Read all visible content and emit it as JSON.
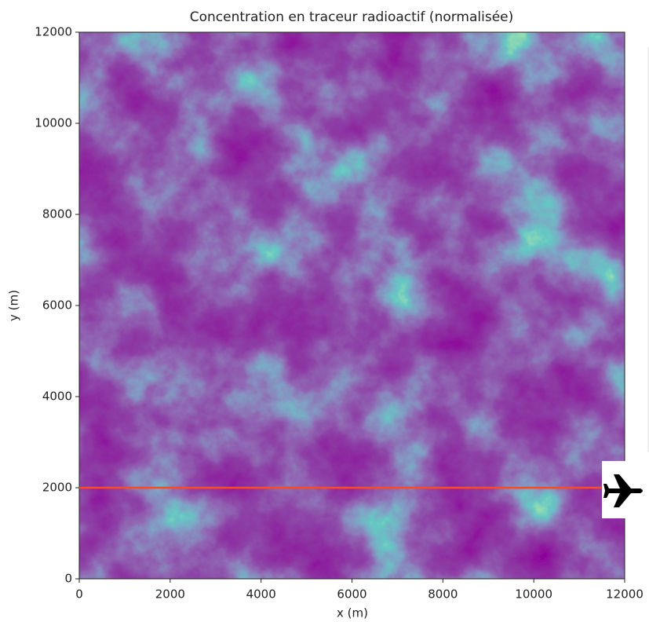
{
  "chart_data": {
    "type": "heatmap",
    "title": "Concentration en traceur radioactif (normalisée)",
    "xlabel": "x (m)",
    "ylabel": "y (m)",
    "xlim": [
      0,
      12000
    ],
    "ylim": [
      0,
      12000
    ],
    "xticks": [
      0,
      2000,
      4000,
      6000,
      8000,
      10000,
      12000
    ],
    "yticks": [
      0,
      2000,
      4000,
      6000,
      8000,
      10000,
      12000
    ],
    "hlines": [
      {
        "value": 2000,
        "color": "#ff4a1c"
      }
    ]
  }
}
